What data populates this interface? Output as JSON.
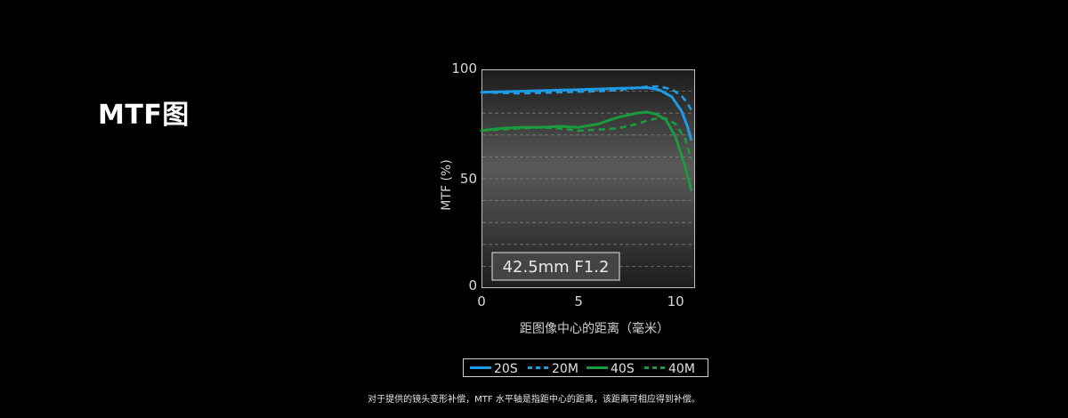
{
  "page": {
    "title": "MTF图",
    "footnote": "对于提供的镜头变形补偿，MTF 水平轴是指距中心的距离，该距离可相应得到补偿。"
  },
  "chart_data": {
    "type": "line",
    "annotation": "42.5mm F1.2",
    "xlabel": "距图像中心的距离（毫米）",
    "ylabel": "MTF (%)",
    "xlim": [
      0,
      11
    ],
    "ylim": [
      0,
      100
    ],
    "x_ticks": [
      0,
      5,
      10
    ],
    "y_ticks": [
      0,
      50,
      100
    ],
    "grid": "horizontal dashed",
    "legend_position": "bottom-center",
    "series": [
      {
        "name": "20S",
        "color": "#1e9be6",
        "dash": "solid",
        "x": [
          0,
          2,
          4,
          6,
          7,
          8,
          8.6,
          9.2,
          9.8,
          10.3,
          10.6,
          10.8
        ],
        "y": [
          89.5,
          90,
          90.5,
          91,
          91.3,
          91.6,
          91.6,
          90.5,
          87.5,
          81,
          74,
          68
        ]
      },
      {
        "name": "20M",
        "color": "#1e9be6",
        "dash": "dashed",
        "x": [
          0,
          2,
          4,
          6,
          7,
          8,
          8.6,
          9.2,
          9.8,
          10.3,
          10.6,
          10.8
        ],
        "y": [
          89.5,
          89,
          89.5,
          90,
          90.5,
          91.5,
          92.2,
          92.2,
          90.8,
          88,
          84.5,
          81.5
        ]
      },
      {
        "name": "40S",
        "color": "#1a9c3e",
        "dash": "solid",
        "x": [
          0,
          1,
          2,
          3,
          4,
          5,
          6,
          7,
          8,
          8.5,
          9,
          9.5,
          10,
          10.5,
          10.8
        ],
        "y": [
          72,
          73,
          73.5,
          73.5,
          74,
          73.5,
          75,
          78,
          80,
          80.5,
          79.5,
          77,
          69,
          55,
          45
        ]
      },
      {
        "name": "40M",
        "color": "#1a9c3e",
        "dash": "dashed",
        "x": [
          0,
          1,
          2,
          3,
          4,
          5,
          6,
          7,
          8,
          8.5,
          9,
          9.5,
          10,
          10.5,
          10.8
        ],
        "y": [
          72,
          72.5,
          73,
          73.5,
          73,
          72,
          72.5,
          73,
          75,
          76.5,
          77.5,
          77.5,
          75,
          68,
          59
        ]
      }
    ]
  }
}
